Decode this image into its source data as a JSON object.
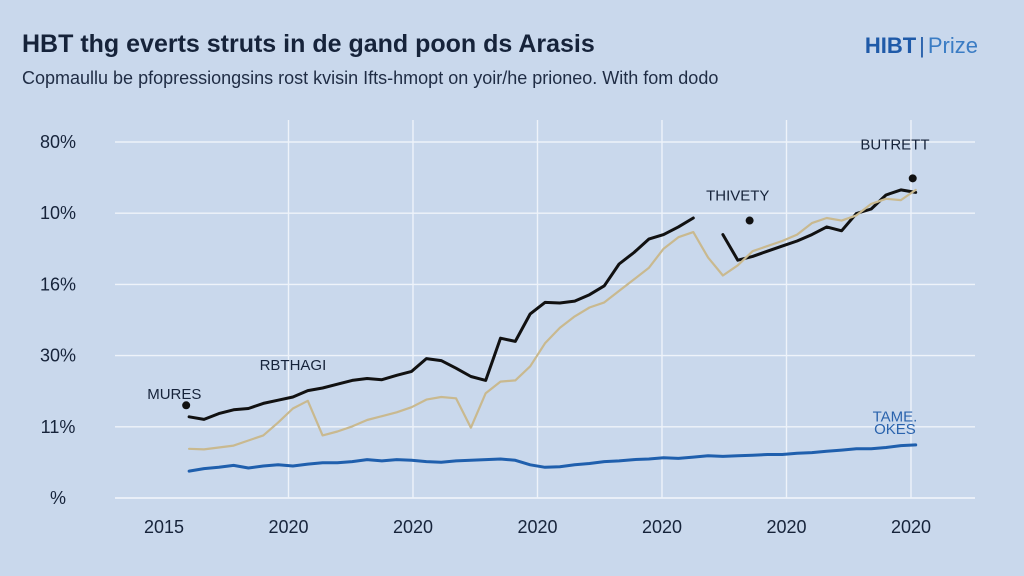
{
  "header": {
    "title": "HBT thg everts struts in de gand poon ds Arasis",
    "subtitle": "Copmaullu be pfopressiongsins rost kvisin Ifts-hmopt on yoir/he prioneo. With fom dodo",
    "brand_strong": "HIBT",
    "brand_light": "Prize"
  },
  "colors": {
    "background": "#c9d8ec",
    "series_black": "#111111",
    "series_tan": "#c9b98f",
    "series_blue": "#1f5fad"
  },
  "chart_data": {
    "type": "line",
    "title": "HBT thg everts struts in de gand poon ds Arasis",
    "xlabel": "",
    "ylabel": "",
    "grid": true,
    "x_tick_labels": [
      "2015",
      "2020",
      "2020",
      "2020",
      "2020",
      "2020",
      "2020"
    ],
    "y_tick_labels": [
      "80%",
      "10%",
      "16%",
      "30%",
      "11%",
      "%"
    ],
    "x": [
      2015.0,
      2015.5,
      2016.0,
      2016.5,
      2017.0,
      2017.5,
      2018.0,
      2018.5,
      2019.0,
      2019.5,
      2020.0,
      2020.5,
      2021.0,
      2021.5,
      2022.0,
      2022.5,
      2023.0,
      2023.5,
      2024.0,
      2024.5,
      2025.0,
      2025.5,
      2026.0,
      2026.5,
      2027.0,
      2027.5,
      2028.0,
      2028.5,
      2029.0,
      2029.5,
      2030.0,
      2030.5,
      2031.0,
      2031.5,
      2032.0,
      2032.5,
      2033.0,
      2033.5,
      2034.0,
      2034.5,
      2035.0,
      2035.5,
      2036.0,
      2036.5,
      2037.0,
      2037.5,
      2038.0,
      2038.5,
      2039.0,
      2039.5
    ],
    "series": [
      {
        "color": "#111111",
        "values": [
          1.27,
          1.23,
          1.32,
          1.38,
          1.4,
          1.48,
          1.53,
          1.58,
          1.68,
          1.72,
          1.78,
          1.84,
          1.87,
          1.85,
          1.92,
          1.98,
          2.18,
          2.15,
          2.03,
          1.9,
          1.84,
          2.5,
          2.45,
          2.88,
          3.06,
          3.05,
          3.08,
          3.18,
          3.32,
          3.66,
          3.84,
          4.05,
          4.12,
          4.24,
          4.38,
          null,
          4.12,
          3.72,
          3.78,
          3.86,
          3.94,
          4.02,
          4.12,
          4.24,
          4.18,
          4.45,
          4.52,
          4.74,
          4.82,
          4.78
        ]
      },
      {
        "color": "#c9b98f",
        "values": [
          0.77,
          0.76,
          0.79,
          0.82,
          0.9,
          0.98,
          1.18,
          1.4,
          1.52,
          0.98,
          1.04,
          1.12,
          1.22,
          1.28,
          1.34,
          1.42,
          1.54,
          1.58,
          1.56,
          1.1,
          1.64,
          1.82,
          1.84,
          2.06,
          2.42,
          2.66,
          2.84,
          2.98,
          3.06,
          3.24,
          3.42,
          3.6,
          3.9,
          4.08,
          4.16,
          3.76,
          3.48,
          3.64,
          3.86,
          3.94,
          4.02,
          4.12,
          4.3,
          4.38,
          4.34,
          4.42,
          4.6,
          4.68,
          4.66,
          4.82
        ]
      },
      {
        "color": "#1f5fad",
        "values": [
          0.42,
          0.46,
          0.48,
          0.51,
          0.47,
          0.5,
          0.52,
          0.5,
          0.53,
          0.55,
          0.55,
          0.57,
          0.6,
          0.58,
          0.6,
          0.59,
          0.57,
          0.56,
          0.58,
          0.59,
          0.6,
          0.61,
          0.59,
          0.52,
          0.48,
          0.49,
          0.52,
          0.54,
          0.57,
          0.58,
          0.6,
          0.61,
          0.63,
          0.62,
          0.64,
          0.66,
          0.65,
          0.66,
          0.67,
          0.68,
          0.68,
          0.7,
          0.71,
          0.73,
          0.75,
          0.77,
          0.77,
          0.79,
          0.82,
          0.83
        ]
      }
    ],
    "annotations": [
      {
        "text": "MURES",
        "x": 2014.5,
        "y": 1.55,
        "style": "dark"
      },
      {
        "text": "RBTHAGI",
        "x": 2018.5,
        "y": 2.0,
        "style": "dark"
      },
      {
        "text": "THIVETY",
        "x": 2033.5,
        "y": 4.65,
        "style": "dark"
      },
      {
        "text": "BUTRETT",
        "x": 2038.8,
        "y": 5.45,
        "style": "dark"
      },
      {
        "text": "TAME.",
        "x": 2038.8,
        "y": 1.2,
        "style": "blue"
      },
      {
        "text": "OKES",
        "x": 2038.8,
        "y": 1.0,
        "style": "blue"
      }
    ],
    "markers": [
      {
        "x": 2014.9,
        "y": 1.45
      },
      {
        "x": 2033.9,
        "y": 4.34
      },
      {
        "x": 2039.4,
        "y": 5.0
      }
    ],
    "xlim": [
      2012.5,
      2041.5
    ],
    "ylim": [
      0,
      5.6
    ]
  }
}
